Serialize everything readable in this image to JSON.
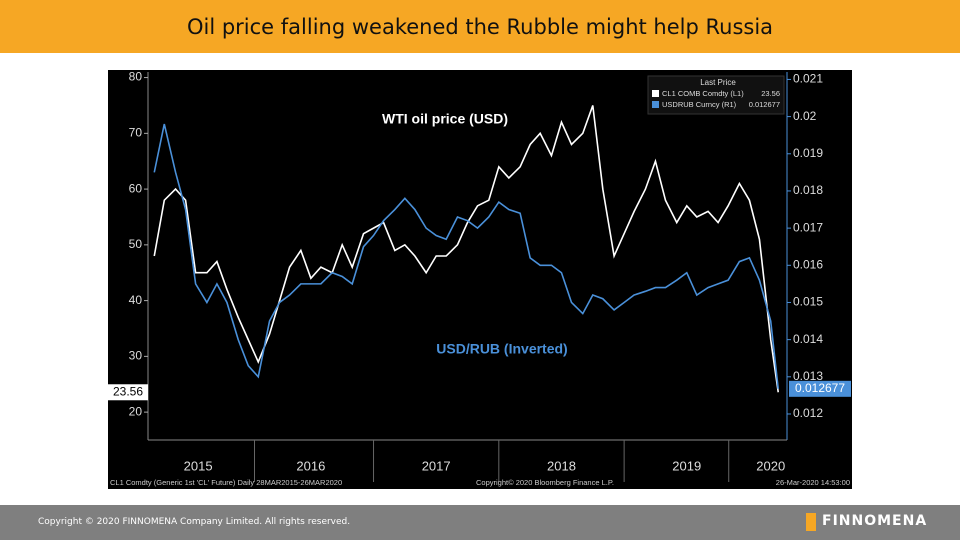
{
  "title": "Oil price falling weakened the Rubble might help Russia",
  "footer": {
    "copyright": "Copyright © 2020 FINNOMENA Company Limited. All rights reserved.",
    "logo": "FINNOMENA"
  },
  "chart_data": {
    "type": "line",
    "legend_title": "Last Price",
    "annotations": [
      "WTI oil price (USD)",
      "USD/RUB (Inverted)"
    ],
    "source_left": "CL1 Comdty (Generic 1st 'CL' Future) Daily 28MAR2015-26MAR2020",
    "source_center": "Copyright© 2020 Bloomberg Finance L.P.",
    "source_right": "26-Mar-2020 14:53:00",
    "x": [
      2015.25,
      2015.33,
      2015.42,
      2015.5,
      2015.58,
      2015.67,
      2015.75,
      2015.83,
      2015.92,
      2016.0,
      2016.08,
      2016.17,
      2016.25,
      2016.33,
      2016.42,
      2016.5,
      2016.58,
      2016.67,
      2016.75,
      2016.83,
      2016.92,
      2017.0,
      2017.08,
      2017.17,
      2017.25,
      2017.33,
      2017.42,
      2017.5,
      2017.58,
      2017.67,
      2017.75,
      2017.83,
      2017.92,
      2018.0,
      2018.08,
      2018.17,
      2018.25,
      2018.33,
      2018.42,
      2018.5,
      2018.58,
      2018.67,
      2018.75,
      2018.83,
      2018.92,
      2019.0,
      2019.08,
      2019.17,
      2019.25,
      2019.33,
      2019.42,
      2019.5,
      2019.58,
      2019.67,
      2019.75,
      2019.83,
      2019.92,
      2020.0,
      2020.08,
      2020.17,
      2020.23
    ],
    "xlim": [
      2015.2,
      2020.3
    ],
    "xticks": [
      {
        "value": 2015.6,
        "label": "2015"
      },
      {
        "value": 2016.5,
        "label": "2016"
      },
      {
        "value": 2017.5,
        "label": "2017"
      },
      {
        "value": 2018.5,
        "label": "2018"
      },
      {
        "value": 2019.5,
        "label": "2019"
      },
      {
        "value": 2020.17,
        "label": "2020"
      }
    ],
    "ylim": [
      15,
      81
    ],
    "yticks": [
      20,
      30,
      40,
      50,
      60,
      70,
      80
    ],
    "y2lim": [
      0.0113,
      0.0212
    ],
    "y2ticks": [
      0.012,
      0.013,
      0.014,
      0.015,
      0.016,
      0.017,
      0.018,
      0.019,
      0.02,
      0.021
    ],
    "series": [
      {
        "name": "CL1 COMB Comdty  (L1)",
        "color": "#ffffff",
        "axis": "y",
        "values": [
          48,
          58,
          60,
          58,
          45,
          45,
          47,
          42,
          37,
          33,
          29,
          34,
          40,
          46,
          49,
          44,
          46,
          45,
          50,
          46,
          52,
          53,
          54,
          49,
          50,
          48,
          45,
          48,
          48,
          50,
          54,
          57,
          58,
          64,
          62,
          64,
          68,
          70,
          66,
          72,
          68,
          70,
          75,
          60,
          48,
          52,
          56,
          60,
          65,
          58,
          54,
          57,
          55,
          56,
          54,
          57,
          61,
          58,
          51,
          33,
          23.56
        ]
      },
      {
        "name": "USDRUB Curncy  (R1)",
        "color": "#4a90d9",
        "axis": "y2",
        "values": [
          0.0185,
          0.0198,
          0.0185,
          0.0175,
          0.0155,
          0.015,
          0.0155,
          0.015,
          0.014,
          0.0133,
          0.013,
          0.0145,
          0.015,
          0.0152,
          0.0155,
          0.0155,
          0.0155,
          0.0158,
          0.0157,
          0.0155,
          0.0165,
          0.0168,
          0.0172,
          0.0175,
          0.0178,
          0.0175,
          0.017,
          0.0168,
          0.0167,
          0.0173,
          0.0172,
          0.017,
          0.0173,
          0.0177,
          0.0175,
          0.0174,
          0.0162,
          0.016,
          0.016,
          0.0158,
          0.015,
          0.0147,
          0.0152,
          0.0151,
          0.0148,
          0.015,
          0.0152,
          0.0153,
          0.0154,
          0.0154,
          0.0156,
          0.0158,
          0.0152,
          0.0154,
          0.0155,
          0.0156,
          0.0161,
          0.0162,
          0.0156,
          0.0145,
          0.012677
        ]
      }
    ]
  }
}
